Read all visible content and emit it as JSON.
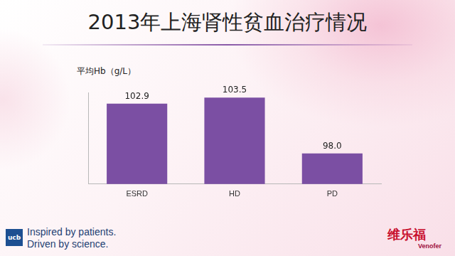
{
  "chart_data": {
    "type": "bar",
    "title": "2013年上海肾性贫血治疗情况",
    "y_label": "平均Hb（g/L）",
    "categories": [
      "ESRD",
      "HD",
      "PD"
    ],
    "values": [
      102.9,
      103.5,
      98.0
    ],
    "value_labels": [
      "102.9",
      "103.5",
      "98.0"
    ],
    "color": "#7b4fa3",
    "ylim": [
      95,
      104
    ],
    "grid": false,
    "tick_labels": "x",
    "data_labels": true,
    "annotations": {
      "logo": "ucb",
      "slogan": [
        "Inspired by patients.",
        "Driven by science."
      ],
      "brand": "维乐福",
      "brand_sub": "Venofer"
    }
  }
}
